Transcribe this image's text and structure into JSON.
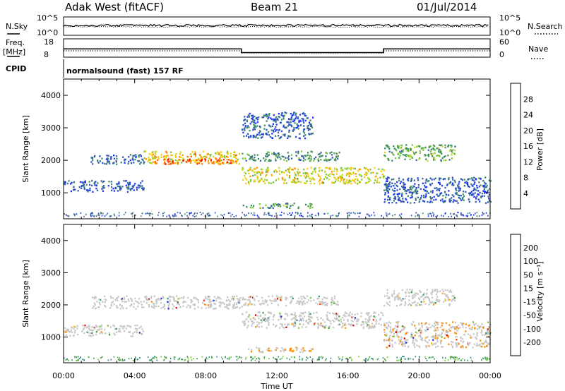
{
  "header": {
    "station": "Adak West (fitACF)",
    "beam": "Beam 21",
    "date": "01/Jul/2014"
  },
  "strips": {
    "nsky": {
      "label": "N.Sky",
      "ticks": [
        "10^5",
        "10^0"
      ]
    },
    "nsearch": {
      "label": "N.Search",
      "ticks": [
        "10^5",
        "10^0"
      ]
    },
    "freq": {
      "label": "Freq.",
      "unit": "[MHz]",
      "ticks": [
        "18",
        "8"
      ]
    },
    "nave": {
      "label": "Nave",
      "ticks": [
        "60",
        "0"
      ]
    },
    "cpid": {
      "label": "CPID",
      "value": "normalsound (fast) 157 RF"
    }
  },
  "colors": {
    "power": [
      "#1e32ff",
      "#2850c8",
      "#3c64a0",
      "#3c8c64",
      "#50a050",
      "#78c83c",
      "#c8dc28",
      "#ffc800",
      "#ff9600",
      "#ff6400",
      "#ff3200",
      "#ff0000"
    ],
    "velocity": [
      "#dc0000",
      "#ff3c00",
      "#ff8c00",
      "#ffb400",
      "#c8c8c8",
      "#c8c8c8",
      "#78c83c",
      "#3ca03c",
      "#3c8c8c",
      "#1e32c8"
    ],
    "ground": "#c8c8c8",
    "line": "#000000"
  },
  "chart_data": [
    {
      "type": "heatmap",
      "name": "Power",
      "ylabel": "Slant Range [km]",
      "xlabel": "",
      "ylim": [
        200,
        4500
      ],
      "yticks": [
        "1000",
        "2000",
        "3000",
        "4000"
      ],
      "colorbar": {
        "label": "Power [dB]",
        "range": [
          0,
          32
        ],
        "ticks": [
          "4",
          "8",
          "12",
          "16",
          "20",
          "24",
          "28"
        ]
      },
      "regions": [
        {
          "t": [
            0.0,
            4.5
          ],
          "r": [
            1050,
            1400
          ],
          "power": 5
        },
        {
          "t": [
            1.5,
            4.5
          ],
          "r": [
            1900,
            2200
          ],
          "power": 6
        },
        {
          "t": [
            4.5,
            10.0
          ],
          "r": [
            1900,
            2300
          ],
          "power": 20
        },
        {
          "t": [
            5.0,
            9.5
          ],
          "r": [
            1900,
            2050
          ],
          "power": 26
        },
        {
          "t": [
            10.0,
            18.0
          ],
          "r": [
            1300,
            1800
          ],
          "power": 18
        },
        {
          "t": [
            10.0,
            15.5
          ],
          "r": [
            2000,
            2300
          ],
          "power": 10
        },
        {
          "t": [
            10.0,
            14.0
          ],
          "r": [
            550,
            700
          ],
          "power": 12
        },
        {
          "t": [
            10.0,
            14.0
          ],
          "r": [
            2700,
            3500
          ],
          "power": 5
        },
        {
          "t": [
            18.0,
            22.0
          ],
          "r": [
            2000,
            2500
          ],
          "power": 12
        },
        {
          "t": [
            18.0,
            24.0
          ],
          "r": [
            700,
            1500
          ],
          "power": 5
        }
      ]
    },
    {
      "type": "heatmap",
      "name": "Velocity",
      "ylabel": "Slant Range [km]",
      "xlabel": "Time UT",
      "ylim": [
        200,
        4500
      ],
      "yticks": [
        "1000",
        "2000",
        "3000",
        "4000"
      ],
      "xticks": [
        "00:00",
        "04:00",
        "08:00",
        "12:00",
        "16:00",
        "20:00",
        "00:00"
      ],
      "colorbar": {
        "label": "Velocity [m s⁻¹]",
        "ticks": [
          "200",
          "100",
          "50",
          "15",
          "-15",
          "-50",
          "-100",
          "-200"
        ]
      },
      "regions": [
        {
          "t": [
            0.0,
            4.5
          ],
          "r": [
            1050,
            1400
          ],
          "velocity": 0
        },
        {
          "t": [
            1.5,
            10.0
          ],
          "r": [
            1900,
            2300
          ],
          "velocity": 0
        },
        {
          "t": [
            10.0,
            18.0
          ],
          "r": [
            1300,
            1800
          ],
          "velocity": 0
        },
        {
          "t": [
            10.0,
            15.5
          ],
          "r": [
            2000,
            2300
          ],
          "velocity": 0
        },
        {
          "t": [
            10.0,
            14.0
          ],
          "r": [
            550,
            700
          ],
          "velocity": -30
        },
        {
          "t": [
            18.0,
            22.0
          ],
          "r": [
            2000,
            2500
          ],
          "velocity": 0
        },
        {
          "t": [
            18.0,
            24.0
          ],
          "r": [
            700,
            1500
          ],
          "velocity": -20
        }
      ]
    }
  ]
}
